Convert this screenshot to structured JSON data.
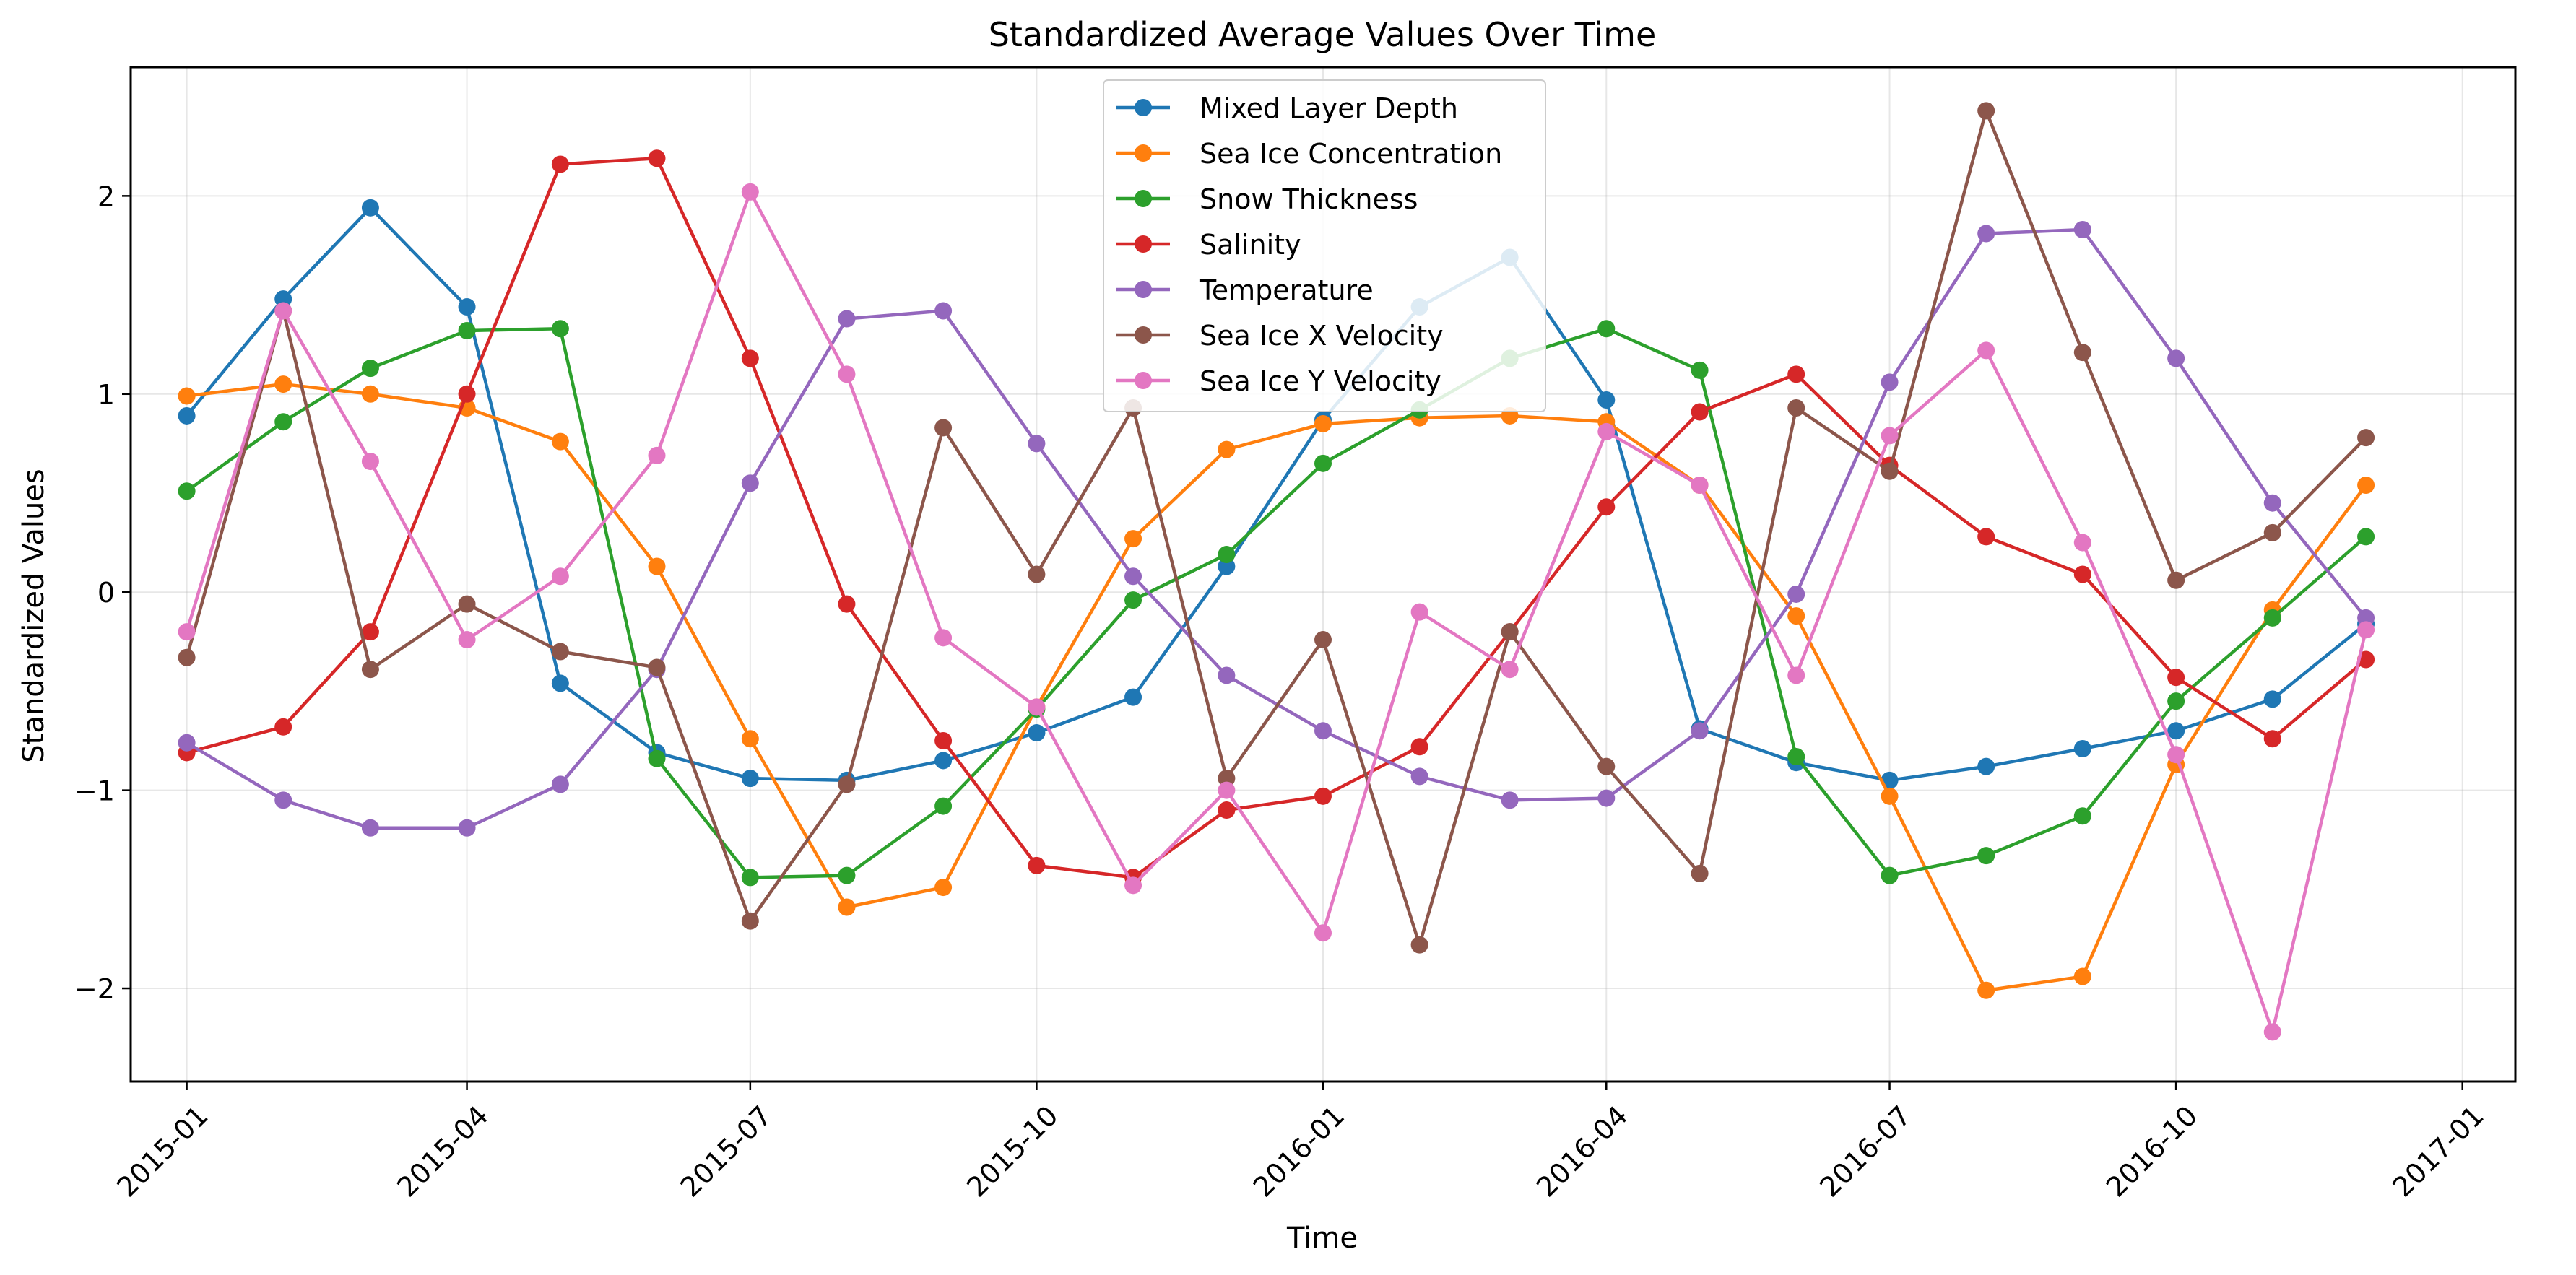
{
  "chart_data": {
    "type": "line",
    "title": "Standardized Average Values Over Time",
    "xlabel": "Time",
    "ylabel": "Standardized Values",
    "x": [
      "2015-01-01",
      "2015-02-01",
      "2015-03-01",
      "2015-04-01",
      "2015-05-01",
      "2015-06-01",
      "2015-07-01",
      "2015-08-01",
      "2015-09-01",
      "2015-10-01",
      "2015-11-01",
      "2015-12-01",
      "2016-01-01",
      "2016-02-01",
      "2016-03-01",
      "2016-04-01",
      "2016-05-01",
      "2016-06-01",
      "2016-07-01",
      "2016-08-01",
      "2016-09-01",
      "2016-10-01",
      "2016-11-01",
      "2016-12-01"
    ],
    "xlim": [
      "2014-12-14",
      "2017-01-18"
    ],
    "ylim": [
      -2.47,
      2.65
    ],
    "x_ticks": [
      "2015-01-01",
      "2015-04-01",
      "2015-07-01",
      "2015-10-01",
      "2016-01-01",
      "2016-04-01",
      "2016-07-01",
      "2016-10-01",
      "2017-01-01"
    ],
    "x_tick_labels": [
      "2015-01",
      "2015-04",
      "2015-07",
      "2015-10",
      "2016-01",
      "2016-04",
      "2016-07",
      "2016-10",
      "2017-01"
    ],
    "y_ticks": [
      -2,
      -1,
      0,
      1,
      2
    ],
    "y_tick_labels": [
      "−2",
      "−1",
      "0",
      "1",
      "2"
    ],
    "grid": true,
    "legend_position": "top-center",
    "series": [
      {
        "name": "Mixed Layer Depth",
        "color": "#1f77b4",
        "values": [
          0.89,
          1.48,
          1.94,
          1.44,
          -0.46,
          -0.81,
          -0.94,
          -0.95,
          -0.85,
          -0.71,
          -0.53,
          0.13,
          0.87,
          1.44,
          1.69,
          0.97,
          -0.69,
          -0.86,
          -0.95,
          -0.88,
          -0.79,
          -0.7,
          -0.54,
          -0.16
        ]
      },
      {
        "name": "Sea Ice Concentration",
        "color": "#ff7f0e",
        "values": [
          0.99,
          1.05,
          1.0,
          0.93,
          0.76,
          0.13,
          -0.74,
          -1.59,
          -1.49,
          -0.58,
          0.27,
          0.72,
          0.85,
          0.88,
          0.89,
          0.86,
          0.54,
          -0.12,
          -1.03,
          -2.01,
          -1.94,
          -0.87,
          -0.09,
          0.54
        ]
      },
      {
        "name": "Snow Thickness",
        "color": "#2ca02c",
        "values": [
          0.51,
          0.86,
          1.13,
          1.32,
          1.33,
          -0.84,
          -1.44,
          -1.43,
          -1.08,
          -0.59,
          -0.04,
          0.19,
          0.65,
          0.92,
          1.18,
          1.33,
          1.12,
          -0.83,
          -1.43,
          -1.33,
          -1.13,
          -0.55,
          -0.13,
          0.28
        ]
      },
      {
        "name": "Salinity",
        "color": "#d62728",
        "values": [
          -0.81,
          -0.68,
          -0.2,
          1.0,
          2.16,
          2.19,
          1.18,
          -0.06,
          -0.75,
          -1.38,
          -1.44,
          -1.1,
          -1.03,
          -0.78,
          -0.2,
          0.43,
          0.91,
          1.1,
          0.64,
          0.28,
          0.09,
          -0.43,
          -0.74,
          -0.34
        ]
      },
      {
        "name": "Temperature",
        "color": "#9467bd",
        "values": [
          -0.76,
          -1.05,
          -1.19,
          -1.19,
          -0.97,
          -0.39,
          0.55,
          1.38,
          1.42,
          0.75,
          0.08,
          -0.42,
          -0.7,
          -0.93,
          -1.05,
          -1.04,
          -0.7,
          -0.01,
          1.06,
          1.81,
          1.83,
          1.18,
          0.45,
          -0.13
        ]
      },
      {
        "name": "Sea Ice X Velocity",
        "color": "#8c564b",
        "values": [
          -0.33,
          1.42,
          -0.39,
          -0.06,
          -0.3,
          -0.38,
          -1.66,
          -0.97,
          0.83,
          0.09,
          0.93,
          -0.94,
          -0.24,
          -1.78,
          -0.2,
          -0.88,
          -1.42,
          0.93,
          0.61,
          2.43,
          1.21,
          0.06,
          0.3,
          0.78
        ]
      },
      {
        "name": "Sea Ice Y Velocity",
        "color": "#e377c2",
        "values": [
          -0.2,
          1.42,
          0.66,
          -0.24,
          0.08,
          0.69,
          2.02,
          1.1,
          -0.23,
          -0.58,
          -1.48,
          -1.0,
          -1.72,
          -0.1,
          -0.39,
          0.81,
          0.54,
          -0.42,
          0.79,
          1.22,
          0.25,
          -0.82,
          -2.22,
          -0.19
        ]
      }
    ]
  }
}
